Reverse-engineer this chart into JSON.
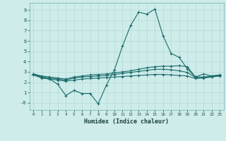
{
  "title": "",
  "xlabel": "Humidex (Indice chaleur)",
  "xlim": [
    -0.5,
    23.5
  ],
  "ylim": [
    -0.7,
    9.7
  ],
  "xticks": [
    0,
    1,
    2,
    3,
    4,
    5,
    6,
    7,
    8,
    9,
    10,
    11,
    12,
    13,
    14,
    15,
    16,
    17,
    18,
    19,
    20,
    21,
    22,
    23
  ],
  "yticks": [
    9,
    8,
    7,
    6,
    5,
    4,
    3,
    2,
    1,
    0
  ],
  "ytick_labels": [
    "9",
    "8",
    "7",
    "6",
    "5",
    "4",
    "3",
    "2",
    "1",
    "-0"
  ],
  "background_color": "#ceecea",
  "grid_color": "#b8ddd9",
  "line_color": "#1a6b6b",
  "series": {
    "main_peak": {
      "x": [
        0,
        1,
        2,
        3,
        4,
        5,
        6,
        7,
        8,
        9,
        10,
        11,
        12,
        13,
        14,
        15,
        16,
        17,
        18,
        19,
        20,
        21,
        22,
        23
      ],
      "y": [
        2.8,
        2.5,
        2.3,
        1.8,
        0.7,
        1.2,
        0.9,
        0.9,
        -0.1,
        1.7,
        3.2,
        5.5,
        7.5,
        8.8,
        8.6,
        9.1,
        6.5,
        4.8,
        4.4,
        3.3,
        2.5,
        2.8,
        2.6,
        2.7
      ]
    },
    "upper_flat": {
      "x": [
        0,
        1,
        2,
        3,
        4,
        5,
        6,
        7,
        8,
        9,
        10,
        11,
        12,
        13,
        14,
        15,
        16,
        17,
        18,
        19,
        20,
        21,
        22,
        23
      ],
      "y": [
        2.8,
        2.6,
        2.5,
        2.4,
        2.3,
        2.5,
        2.6,
        2.7,
        2.75,
        2.8,
        2.9,
        3.0,
        3.1,
        3.25,
        3.4,
        3.5,
        3.55,
        3.55,
        3.6,
        3.5,
        2.5,
        2.5,
        2.6,
        2.7
      ]
    },
    "middle_flat": {
      "x": [
        0,
        1,
        2,
        3,
        4,
        5,
        6,
        7,
        8,
        9,
        10,
        11,
        12,
        13,
        14,
        15,
        16,
        17,
        18,
        19,
        20,
        21,
        22,
        23
      ],
      "y": [
        2.75,
        2.5,
        2.4,
        2.3,
        2.2,
        2.4,
        2.5,
        2.55,
        2.6,
        2.65,
        2.75,
        2.85,
        2.95,
        3.05,
        3.15,
        3.25,
        3.25,
        3.2,
        3.1,
        2.95,
        2.45,
        2.45,
        2.55,
        2.65
      ]
    },
    "lower_flat": {
      "x": [
        0,
        1,
        2,
        3,
        4,
        5,
        6,
        7,
        8,
        9,
        10,
        11,
        12,
        13,
        14,
        15,
        16,
        17,
        18,
        19,
        20,
        21,
        22,
        23
      ],
      "y": [
        2.7,
        2.4,
        2.3,
        2.2,
        2.1,
        2.2,
        2.3,
        2.35,
        2.4,
        2.45,
        2.5,
        2.55,
        2.6,
        2.65,
        2.7,
        2.75,
        2.75,
        2.7,
        2.65,
        2.6,
        2.35,
        2.4,
        2.5,
        2.6
      ]
    }
  }
}
